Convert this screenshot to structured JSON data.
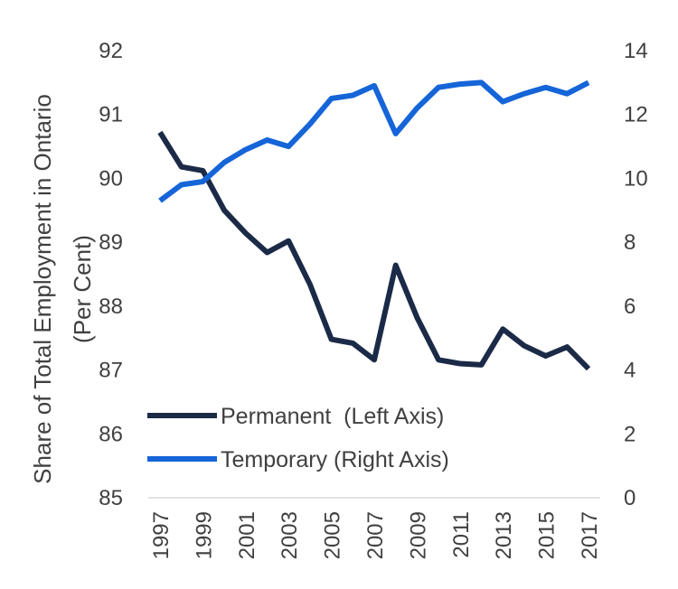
{
  "chart_data": {
    "type": "line",
    "title": "",
    "xlabel": "",
    "ylabel_lines": [
      "Share of Total Employment in Ontario",
      "(Per Cent)"
    ],
    "x": [
      1997,
      1998,
      1999,
      2000,
      2001,
      2002,
      2003,
      2004,
      2005,
      2006,
      2007,
      2008,
      2009,
      2010,
      2011,
      2012,
      2013,
      2014,
      2015,
      2016,
      2017
    ],
    "x_tick_labels": [
      "1997",
      "1999",
      "2001",
      "2003",
      "2005",
      "2007",
      "2009",
      "2011",
      "2013",
      "2015",
      "2017"
    ],
    "y_left": {
      "range": [
        85,
        92
      ],
      "ticks": [
        "85",
        "86",
        "87",
        "88",
        "89",
        "90",
        "91",
        "92"
      ]
    },
    "y_right": {
      "range": [
        0,
        14
      ],
      "ticks": [
        "0",
        "2",
        "4",
        "6",
        "8",
        "10",
        "12",
        "14"
      ]
    },
    "series": [
      {
        "name": "Permanent  (Left Axis)",
        "axis": "left",
        "color": "#1b2a47",
        "values": [
          90.72,
          90.18,
          90.12,
          89.5,
          89.14,
          88.84,
          89.02,
          88.34,
          87.48,
          87.42,
          87.16,
          88.64,
          87.82,
          87.16,
          87.1,
          87.08,
          87.64,
          87.38,
          87.22,
          87.36,
          87.02
        ]
      },
      {
        "name": "Temporary (Right Axis)",
        "axis": "right",
        "color": "#1565d8",
        "values": [
          9.3,
          9.8,
          9.9,
          10.5,
          10.9,
          11.2,
          11.0,
          11.7,
          12.5,
          12.6,
          12.9,
          11.4,
          12.2,
          12.85,
          12.95,
          13.0,
          12.4,
          12.65,
          12.85,
          12.65,
          13.0
        ]
      }
    ],
    "legend_position": "lower-left"
  }
}
